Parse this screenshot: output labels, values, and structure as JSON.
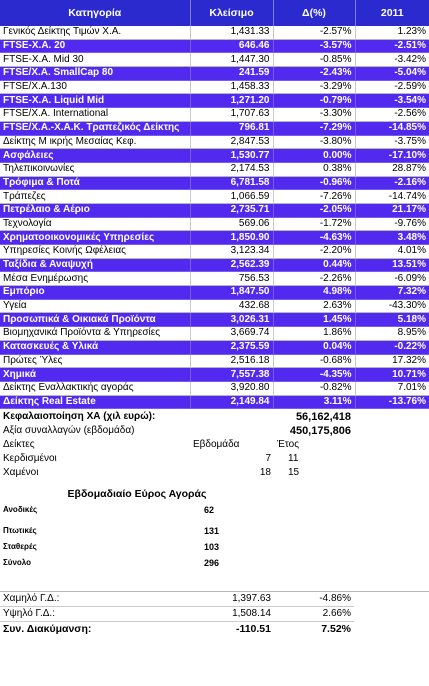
{
  "headers": [
    "Κατηγορία",
    "Κλείσιμο",
    "Δ(%)",
    "2011"
  ],
  "rows": [
    {
      "name": "Γενικός Δείκτης Τιμών Χ.Α.",
      "close": "1,431.33",
      "chg": "-2.57%",
      "ytd": "1.23%",
      "hl": false
    },
    {
      "name": "FTSE-X.A. 20",
      "close": "646.46",
      "chg": "-3.57%",
      "ytd": "-2.51%",
      "hl": true
    },
    {
      "name": "FTSE-X.A. Mid 30",
      "close": "1,447.30",
      "chg": "-0.85%",
      "ytd": "-3.42%",
      "hl": false
    },
    {
      "name": "FTSE/X.A. SmallCap 80",
      "close": "241.59",
      "chg": "-2.43%",
      "ytd": "-5.04%",
      "hl": true
    },
    {
      "name": "FTSE/X.A.130",
      "close": "1,458.33",
      "chg": "-3.29%",
      "ytd": "-2.59%",
      "hl": false
    },
    {
      "name": "FTSE-X.A. Liquid Mid",
      "close": "1,271.20",
      "chg": "-0.79%",
      "ytd": "-3.54%",
      "hl": true
    },
    {
      "name": "FTSE/X.A. International",
      "close": "1,707.63",
      "chg": "-3.30%",
      "ytd": "-2.56%",
      "hl": false
    },
    {
      "name": "FTSE/X.A.-X.A.K. Τραπεζικός Δείκτης",
      "close": "796.81",
      "chg": "-7.29%",
      "ytd": "-14.85%",
      "hl": true
    },
    {
      "name": "Δείκτης Μ ικρής Μεσαίας Κεφ.",
      "close": "2,847.53",
      "chg": "-3.80%",
      "ytd": "-3.75%",
      "hl": false
    },
    {
      "name": "Ασφάλειες",
      "close": "1,530.77",
      "chg": "0.00%",
      "ytd": "-17.10%",
      "hl": true
    },
    {
      "name": "Τηλεπικοινωνίες",
      "close": "2,174.53",
      "chg": "0.38%",
      "ytd": "28.87%",
      "hl": false
    },
    {
      "name": "Τρόφιμα & Ποτά",
      "close": "6,781.58",
      "chg": "-0.96%",
      "ytd": "-2.16%",
      "hl": true
    },
    {
      "name": "Τράπεζες",
      "close": "1,066.59",
      "chg": "-7.26%",
      "ytd": "-14.74%",
      "hl": false
    },
    {
      "name": "Πετρέλαιο & Αέριο",
      "close": "2,735.71",
      "chg": "-2.05%",
      "ytd": "21.17%",
      "hl": true
    },
    {
      "name": "Τεχνολογία",
      "close": "569.06",
      "chg": "-1.72%",
      "ytd": "-9.76%",
      "hl": false
    },
    {
      "name": "Χρηματοοικονομικές Υπηρεσίες",
      "close": "1,850.90",
      "chg": "-4.63%",
      "ytd": "3.48%",
      "hl": true
    },
    {
      "name": "Υπηρεσίες Κοινής Ωφέλειας",
      "close": "3,123.34",
      "chg": "-2.20%",
      "ytd": "4.01%",
      "hl": false
    },
    {
      "name": "Ταξίδια & Αναψυχή",
      "close": "2,562.39",
      "chg": "0.44%",
      "ytd": "13.51%",
      "hl": true
    },
    {
      "name": "Μέσα Ενημέρωσης",
      "close": "756.53",
      "chg": "-2.26%",
      "ytd": "-6.09%",
      "hl": false
    },
    {
      "name": "Εμπόριο",
      "close": "1,847.50",
      "chg": "4.98%",
      "ytd": "7.32%",
      "hl": true
    },
    {
      "name": "Υγεία",
      "close": "432.68",
      "chg": "2.63%",
      "ytd": "-43.30%",
      "hl": false
    },
    {
      "name": "Προσωπικά & Οικιακά Προϊόντα",
      "close": "3,026.31",
      "chg": "1.45%",
      "ytd": "5.18%",
      "hl": true
    },
    {
      "name": "Βιομηχανικά Προϊόντα & Υπηρεσίες",
      "close": "3,669.74",
      "chg": "1.86%",
      "ytd": "8.95%",
      "hl": false
    },
    {
      "name": "Κατασκευές & Υλικά",
      "close": "2,375.59",
      "chg": "0.04%",
      "ytd": "-0.22%",
      "hl": true
    },
    {
      "name": "Πρώτες Ύλες",
      "close": "2,516.18",
      "chg": "-0.68%",
      "ytd": "17.32%",
      "hl": false
    },
    {
      "name": "Χημικά",
      "close": "7,557.38",
      "chg": "-4.35%",
      "ytd": "10.71%",
      "hl": true
    },
    {
      "name": "Δείκτης Εναλλακτικής αγοράς",
      "close": "3,920.80",
      "chg": "-0.82%",
      "ytd": "7.01%",
      "hl": false
    },
    {
      "name": "Δείκτης Real Estate",
      "close": "2,149.84",
      "chg": "3.11%",
      "ytd": "-13.76%",
      "hl": true
    }
  ],
  "summary": {
    "cap_label": "Κεφαλαιοποίηση ΧΑ (χιλ ευρώ):",
    "cap_value": "56,162,418",
    "vol_label": "Αξία συναλλαγών (εβδομάδα)",
    "vol_value": "450,175,806",
    "idx_label": "Δείκτες",
    "week_label": "Εβδομάδα",
    "year_label": "Έτος",
    "gainers_label": "Κερδισμένοι",
    "gainers_week": "7",
    "gainers_year": "11",
    "losers_label": "Χαμένοι",
    "losers_week": "18",
    "losers_year": "15"
  },
  "breadth": {
    "title": "Εβδομαδιαίο Εύρος Αγοράς",
    "items": [
      {
        "label": "Ανοδικές",
        "value": "62"
      },
      {
        "label": "Πτωτικές",
        "value": "131"
      },
      {
        "label": "Σταθερές",
        "value": "103"
      },
      {
        "label": "Σύνολο",
        "value": "296"
      }
    ]
  },
  "bottom": {
    "low_label": "Χαμηλό Γ.Δ.:",
    "low_value": "1,397.63",
    "low_pct": "-4.86%",
    "high_label": "Υψηλό Γ.Δ.:",
    "high_value": "1,508.14",
    "high_pct": "2.66%",
    "var_label": "Συν. Διακύμανση:",
    "var_value": "-110.51",
    "var_pct": "7.52%"
  }
}
